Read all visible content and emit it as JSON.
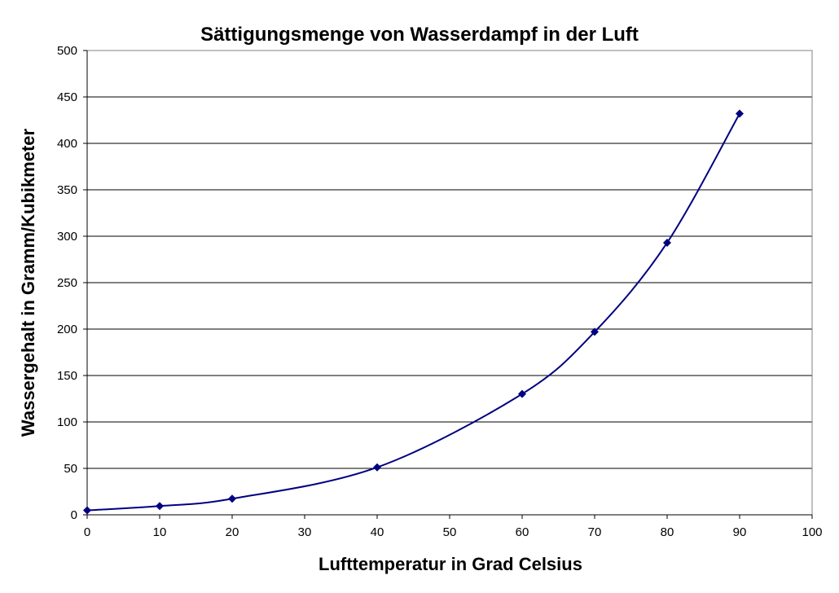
{
  "chart_data": {
    "type": "line",
    "title": "Sättigungsmenge von Wasserdampf in der Luft",
    "xlabel": "Lufttemperatur in Grad Celsius",
    "ylabel": "Wassergehalt in Gramm/Kubikmeter",
    "xlim": [
      0,
      100
    ],
    "ylim": [
      0,
      500
    ],
    "x_ticks": [
      0,
      10,
      20,
      30,
      40,
      50,
      60,
      70,
      80,
      90,
      100
    ],
    "y_ticks": [
      0,
      50,
      100,
      150,
      200,
      250,
      300,
      350,
      400,
      450,
      500
    ],
    "grid": "horizontal",
    "legend": "none",
    "series": [
      {
        "color": "#000080",
        "marker": "diamond",
        "smooth": true,
        "points": [
          {
            "x": 0,
            "y": 4.8
          },
          {
            "x": 10,
            "y": 9.4
          },
          {
            "x": 20,
            "y": 17.3
          },
          {
            "x": 40,
            "y": 51.1
          },
          {
            "x": 60,
            "y": 130.2
          },
          {
            "x": 70,
            "y": 197.0
          },
          {
            "x": 80,
            "y": 293.0
          },
          {
            "x": 90,
            "y": 432.0
          }
        ]
      }
    ]
  }
}
